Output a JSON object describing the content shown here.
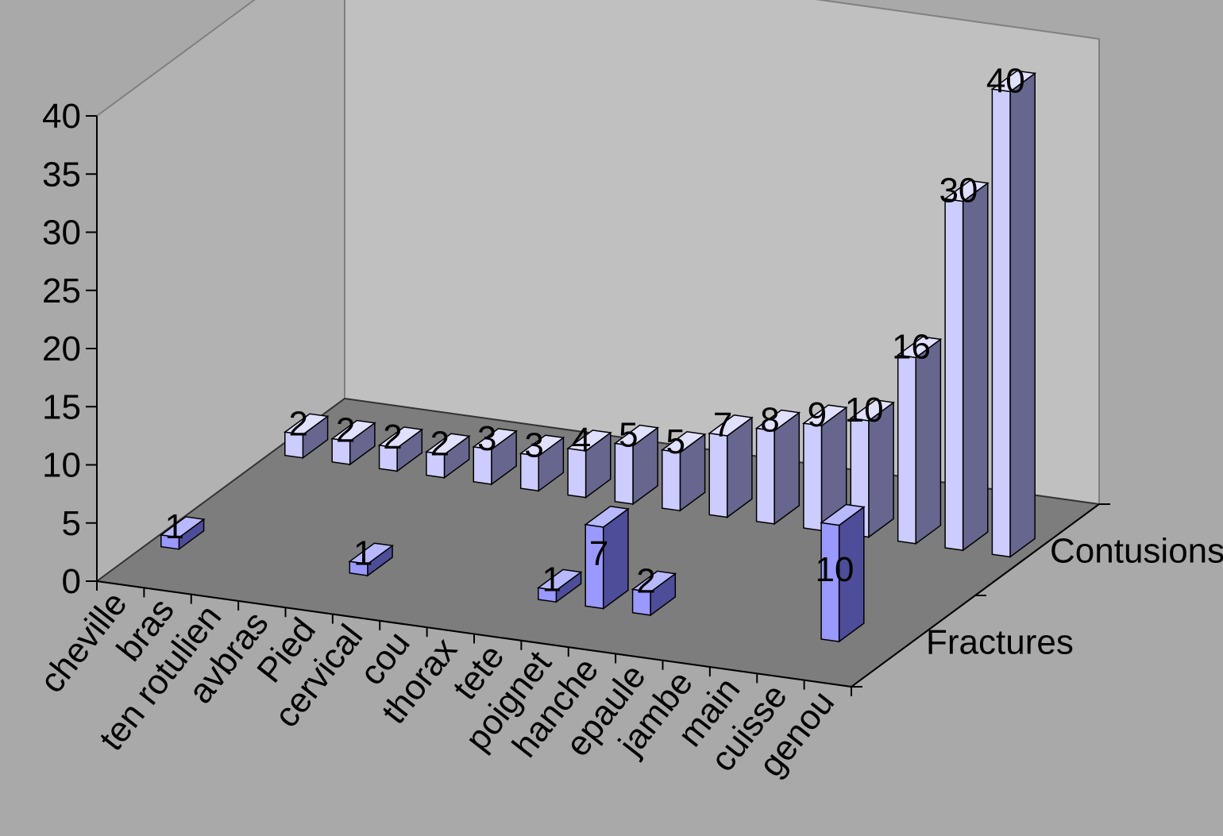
{
  "chart_data": {
    "type": "bar",
    "subtype": "3d-column",
    "title": "",
    "xlabel": "",
    "ylabel": "",
    "ylim": [
      0,
      40
    ],
    "yticks": [
      0,
      5,
      10,
      15,
      20,
      25,
      30,
      35,
      40
    ],
    "categories": [
      "cheville",
      "bras",
      "ten rotulien",
      "avbras",
      "Pied",
      "cervical",
      "cou",
      "thorax",
      "tete",
      "poignet",
      "hanche",
      "epaule",
      "jambe",
      "main",
      "cuisse",
      "genou"
    ],
    "series": [
      {
        "name": "Fractures",
        "values": [
          1,
          null,
          null,
          null,
          1,
          null,
          null,
          null,
          1,
          7,
          2,
          null,
          null,
          null,
          10,
          null
        ]
      },
      {
        "name": "Contusions",
        "values": [
          2,
          2,
          2,
          2,
          3,
          3,
          4,
          5,
          5,
          7,
          8,
          9,
          10,
          16,
          30,
          40
        ]
      }
    ],
    "grid": false,
    "legend": "depth-axis-labels"
  },
  "colors": {
    "background": "#a9a9a9",
    "back_wall": "#c0c0c0",
    "side_wall": "#b2b2b2",
    "floor": "#7d7d7d",
    "fractures_front": "#9999ff",
    "fractures_side": "#4d4d99",
    "contusions_front": "#ccccff",
    "contusions_side": "#66668f"
  }
}
